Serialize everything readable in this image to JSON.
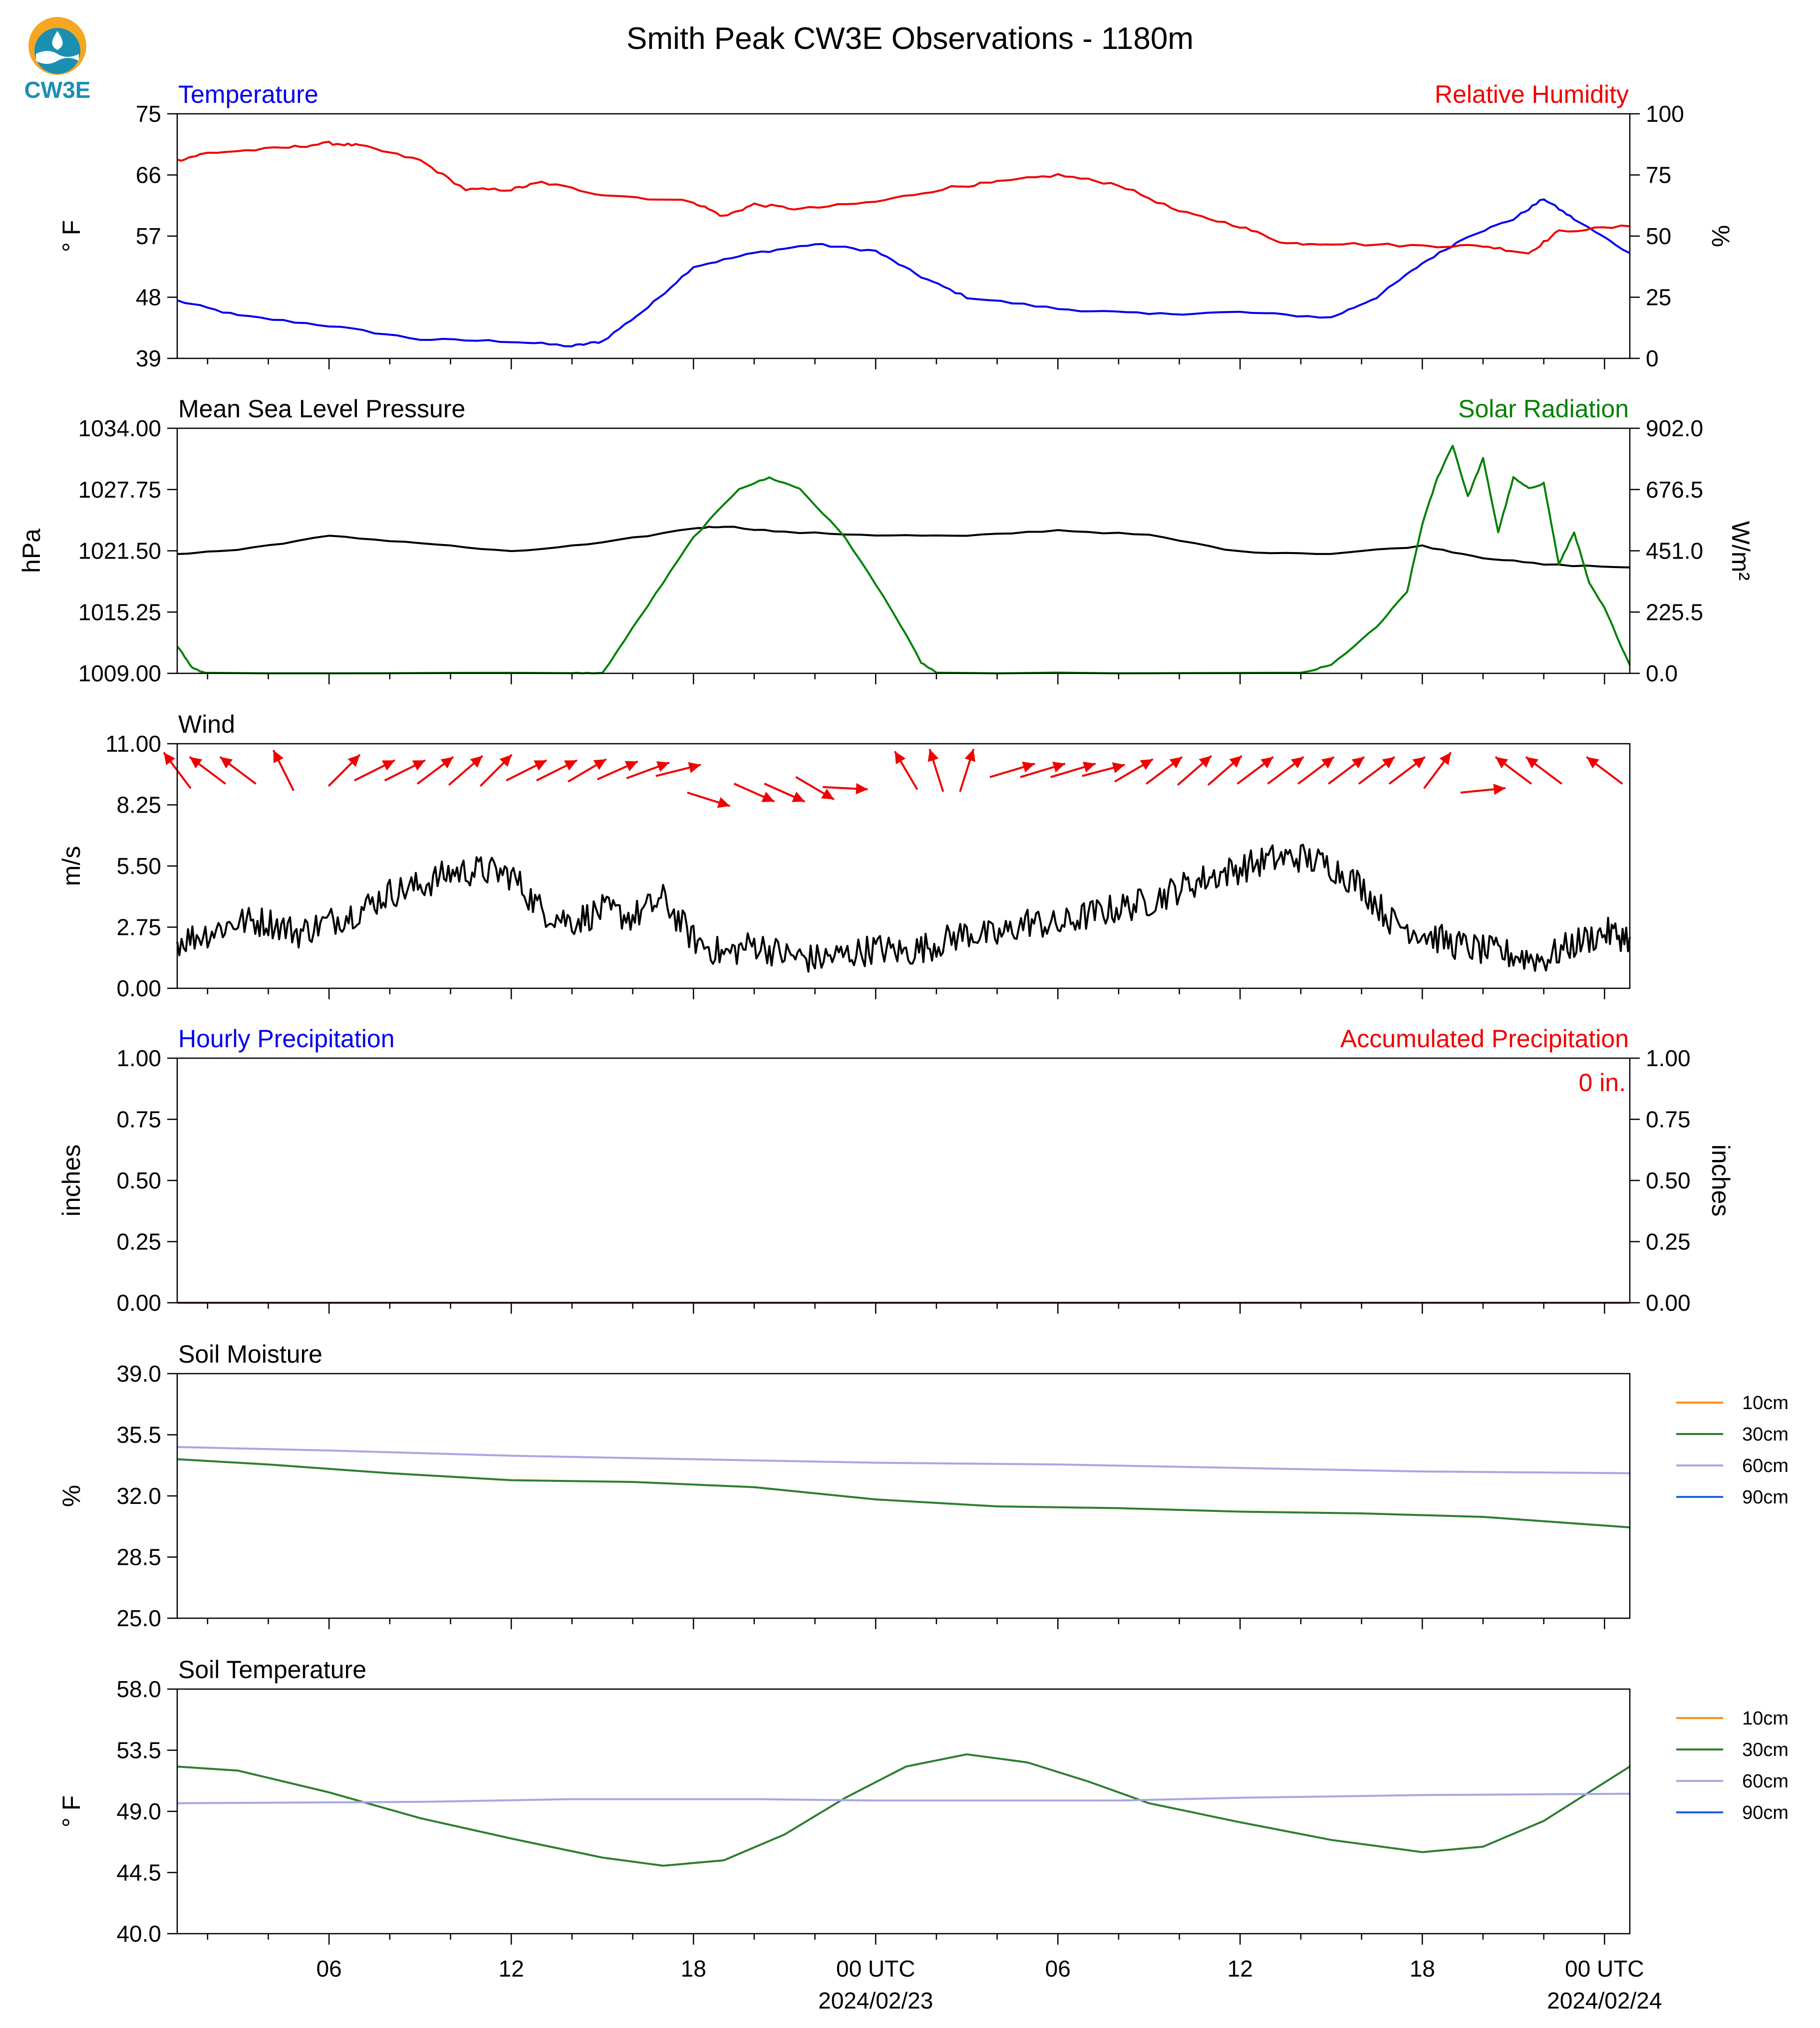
{
  "page": {
    "title": "Smith Peak CW3E Observations - 1180m",
    "logo_text": "CW3E"
  },
  "colors": {
    "blue": "#0000ee",
    "red": "#ee0000",
    "green": "#008000",
    "black": "#000000",
    "orange": "#ff8c1a",
    "lightgreen_30cm": "#2e7d32",
    "lavender_60cm": "#a7a7e3",
    "blue_90cm": "#1f5fe6",
    "logo_orange": "#f5a623",
    "logo_teal": "#1b8fb0"
  },
  "x_axis": {
    "tick_labels": [
      "06",
      "12",
      "18",
      "00 UTC",
      "06",
      "12",
      "18",
      "00 UTC"
    ],
    "date_labels": [
      "2024/02/23",
      "2024/02/24"
    ],
    "start": "2024-02-22T01:00Z",
    "end": "2024-02-24T00:50Z"
  },
  "chart_data": [
    {
      "id": "temperature-rh",
      "type": "line",
      "title_left": "Temperature",
      "title_right": "Relative Humidity",
      "ylabel_left": "° F",
      "ylabel_right": "%",
      "ylim_left": [
        39,
        75
      ],
      "ylim_right": [
        0,
        100
      ],
      "yticks_left": [
        "39",
        "48",
        "57",
        "66",
        "75"
      ],
      "yticks_right": [
        "0",
        "25",
        "50",
        "75",
        "100"
      ],
      "series": [
        {
          "name": "Temperature",
          "axis": "left",
          "color": "#0000ee",
          "x": [
            "2024-02-22 01:00",
            "2024-02-22 03:00",
            "2024-02-22 06:00",
            "2024-02-22 09:00",
            "2024-02-22 12:00",
            "2024-02-22 14:00",
            "2024-02-22 15:00",
            "2024-02-22 16:30",
            "2024-02-22 18:00",
            "2024-02-22 20:00",
            "2024-02-22 22:00",
            "2024-02-23 00:00",
            "2024-02-23 01:30",
            "2024-02-23 03:00",
            "2024-02-23 06:00",
            "2024-02-23 09:00",
            "2024-02-23 12:00",
            "2024-02-23 15:00",
            "2024-02-23 16:30",
            "2024-02-23 18:00",
            "2024-02-23 19:30",
            "2024-02-23 21:00",
            "2024-02-23 22:00",
            "2024-02-23 23:00",
            "2024-02-24 00:50"
          ],
          "values": [
            47.5,
            45.3,
            43.8,
            41.8,
            41.5,
            40.8,
            41.5,
            46.5,
            52.5,
            54.5,
            55.8,
            54.8,
            51,
            48,
            46.3,
            45.5,
            45.8,
            45,
            48,
            53,
            57,
            59.5,
            62.5,
            59.5,
            54.5
          ]
        },
        {
          "name": "Relative Humidity",
          "axis": "right",
          "color": "#ee0000",
          "x": [
            "2024-02-22 01:00",
            "2024-02-22 02:00",
            "2024-02-22 04:30",
            "2024-02-22 06:00",
            "2024-02-22 07:00",
            "2024-02-22 09:00",
            "2024-02-22 10:30",
            "2024-02-22 12:00",
            "2024-02-22 13:00",
            "2024-02-22 15:00",
            "2024-02-22 18:00",
            "2024-02-22 19:00",
            "2024-02-22 20:00",
            "2024-02-22 21:30",
            "2024-02-23 00:00",
            "2024-02-23 02:30",
            "2024-02-23 04:00",
            "2024-02-23 06:00",
            "2024-02-23 08:00",
            "2024-02-23 10:00",
            "2024-02-23 12:00",
            "2024-02-23 13:30",
            "2024-02-23 15:00",
            "2024-02-23 18:00",
            "2024-02-23 20:00",
            "2024-02-23 21:30",
            "2024-02-23 22:30",
            "2024-02-24 00:50"
          ],
          "values": [
            81,
            84,
            86,
            88,
            87,
            81,
            69,
            69,
            72,
            67,
            64,
            58,
            63,
            61,
            64,
            70,
            72,
            75,
            71,
            60,
            54,
            47,
            47,
            46,
            46,
            43,
            52,
            54
          ]
        }
      ]
    },
    {
      "id": "pressure-solar",
      "type": "line",
      "title_left": "Mean Sea Level Pressure",
      "title_right": "Solar Radiation",
      "ylabel_left": "hPa",
      "ylabel_right": "W/m²",
      "ylim_left": [
        1009,
        1034
      ],
      "ylim_right": [
        0,
        902
      ],
      "yticks_left": [
        "1009.00",
        "1015.25",
        "1021.50",
        "1027.75",
        "1034.00"
      ],
      "yticks_right": [
        "0.0",
        "225.5",
        "451.0",
        "676.5",
        "902.0"
      ],
      "series": [
        {
          "name": "Mean Sea Level Pressure",
          "axis": "left",
          "color": "#000000",
          "x": [
            "2024-02-22 01:00",
            "2024-02-22 03:00",
            "2024-02-22 06:00",
            "2024-02-22 09:00",
            "2024-02-22 12:00",
            "2024-02-22 15:00",
            "2024-02-22 18:00",
            "2024-02-22 19:00",
            "2024-02-22 21:00",
            "2024-02-23 00:00",
            "2024-02-23 03:00",
            "2024-02-23 06:00",
            "2024-02-23 09:00",
            "2024-02-23 12:00",
            "2024-02-23 15:00",
            "2024-02-23 18:00",
            "2024-02-23 20:00",
            "2024-02-23 22:00",
            "2024-02-24 00:50"
          ],
          "values": [
            1021.2,
            1021.6,
            1023.0,
            1022.3,
            1021.4,
            1022.3,
            1023.8,
            1024.0,
            1023.4,
            1023.1,
            1023.0,
            1023.6,
            1023.1,
            1021.4,
            1021.2,
            1022.0,
            1020.8,
            1020.1,
            1019.8
          ]
        },
        {
          "name": "Solar Radiation",
          "axis": "right",
          "color": "#008000",
          "x": [
            "2024-02-22 01:00",
            "2024-02-22 01:30",
            "2024-02-22 02:00",
            "2024-02-22 14:00",
            "2024-02-22 15:00",
            "2024-02-22 16:30",
            "2024-02-22 18:00",
            "2024-02-22 19:30",
            "2024-02-22 20:30",
            "2024-02-22 21:30",
            "2024-02-22 23:00",
            "2024-02-23 00:30",
            "2024-02-23 01:30",
            "2024-02-23 02:00",
            "2024-02-23 14:00",
            "2024-02-23 15:00",
            "2024-02-23 16:30",
            "2024-02-23 17:30",
            "2024-02-23 18:00",
            "2024-02-23 18:30",
            "2024-02-23 19:00",
            "2024-02-23 19:30",
            "2024-02-23 20:00",
            "2024-02-23 20:30",
            "2024-02-23 21:00",
            "2024-02-23 21:30",
            "2024-02-23 22:00",
            "2024-02-23 22:30",
            "2024-02-23 23:00",
            "2024-02-23 23:30",
            "2024-02-24 00:00",
            "2024-02-24 00:50"
          ],
          "values": [
            100,
            20,
            0,
            0,
            0,
            250,
            500,
            680,
            720,
            680,
            500,
            240,
            40,
            0,
            0,
            30,
            170,
            300,
            550,
            720,
            840,
            650,
            790,
            520,
            720,
            680,
            700,
            400,
            520,
            330,
            240,
            30
          ]
        }
      ]
    },
    {
      "id": "wind",
      "type": "line",
      "title_left": "Wind",
      "ylabel_left": "m/s",
      "ylim_left": [
        0,
        11
      ],
      "yticks_left": [
        "0.00",
        "2.75",
        "5.50",
        "8.25",
        "11.00"
      ],
      "series": [
        {
          "name": "Wind Speed",
          "axis": "left",
          "color": "#000000",
          "x": [
            "2024-02-22 01:00",
            "2024-02-22 02:00",
            "2024-02-22 03:00",
            "2024-02-22 04:00",
            "2024-02-22 05:00",
            "2024-02-22 06:00",
            "2024-02-22 07:00",
            "2024-02-22 08:00",
            "2024-02-22 09:00",
            "2024-02-22 10:00",
            "2024-02-22 11:00",
            "2024-02-22 12:00",
            "2024-02-22 13:00",
            "2024-02-22 14:00",
            "2024-02-22 15:00",
            "2024-02-22 16:00",
            "2024-02-22 17:00",
            "2024-02-22 18:00",
            "2024-02-22 19:00",
            "2024-02-22 20:00",
            "2024-02-22 21:00",
            "2024-02-22 22:00",
            "2024-02-22 23:00",
            "2024-02-23 00:00",
            "2024-02-23 01:00",
            "2024-02-23 02:00",
            "2024-02-23 03:00",
            "2024-02-23 04:00",
            "2024-02-23 05:00",
            "2024-02-23 06:00",
            "2024-02-23 07:00",
            "2024-02-23 08:00",
            "2024-02-23 09:00",
            "2024-02-23 10:00",
            "2024-02-23 11:00",
            "2024-02-23 12:00",
            "2024-02-23 13:00",
            "2024-02-23 14:00",
            "2024-02-23 15:00",
            "2024-02-23 16:00",
            "2024-02-23 17:00",
            "2024-02-23 18:00",
            "2024-02-23 19:00",
            "2024-02-23 20:00",
            "2024-02-23 21:00",
            "2024-02-23 22:00",
            "2024-02-23 23:00",
            "2024-02-24 00:00",
            "2024-02-24 00:50"
          ],
          "values": [
            2.1,
            2.5,
            3.0,
            3.0,
            2.5,
            3.0,
            3.5,
            4.3,
            4.6,
            5.2,
            5.3,
            5.1,
            3.5,
            3.0,
            3.5,
            3.2,
            4.0,
            2.2,
            1.5,
            2.0,
            1.5,
            1.3,
            1.5,
            1.8,
            1.6,
            2.0,
            2.5,
            2.3,
            3.0,
            2.8,
            3.3,
            3.6,
            3.9,
            4.5,
            5.0,
            5.4,
            5.8,
            5.9,
            5.5,
            4.6,
            3.0,
            2.5,
            2.0,
            1.7,
            1.5,
            1.3,
            2.0,
            2.5,
            2.3
          ]
        }
      ],
      "arrows": {
        "color": "#ee0000",
        "x": [
          "2024-02-22 01:00",
          "2024-02-22 02:00",
          "2024-02-22 03:00",
          "2024-02-22 04:30",
          "2024-02-22 06:30",
          "2024-02-22 07:30",
          "2024-02-22 08:30",
          "2024-02-22 09:30",
          "2024-02-22 10:30",
          "2024-02-22 11:30",
          "2024-02-22 12:30",
          "2024-02-22 13:30",
          "2024-02-22 14:30",
          "2024-02-22 15:30",
          "2024-02-22 16:30",
          "2024-02-22 17:30",
          "2024-02-22 18:30",
          "2024-02-22 20:00",
          "2024-02-22 21:00",
          "2024-02-22 22:00",
          "2024-02-22 23:00",
          "2024-02-23 01:00",
          "2024-02-23 02:00",
          "2024-02-23 03:00",
          "2024-02-23 04:30",
          "2024-02-23 05:30",
          "2024-02-23 06:30",
          "2024-02-23 07:30",
          "2024-02-23 08:30",
          "2024-02-23 09:30",
          "2024-02-23 10:30",
          "2024-02-23 11:30",
          "2024-02-23 12:30",
          "2024-02-23 13:30",
          "2024-02-23 14:30",
          "2024-02-23 15:30",
          "2024-02-23 16:30",
          "2024-02-23 17:30",
          "2024-02-23 18:30",
          "2024-02-23 20:00",
          "2024-02-23 21:00",
          "2024-02-23 22:00",
          "2024-02-24 00:00"
        ],
        "y": [
          9.8,
          9.8,
          9.8,
          9.8,
          9.8,
          9.8,
          9.8,
          9.8,
          9.8,
          9.8,
          9.8,
          9.8,
          9.8,
          9.8,
          9.8,
          9.8,
          8.5,
          8.8,
          8.8,
          9.0,
          9.0,
          9.8,
          9.8,
          9.8,
          9.8,
          9.8,
          9.8,
          9.8,
          9.8,
          9.8,
          9.8,
          9.8,
          9.8,
          9.8,
          9.8,
          9.8,
          9.8,
          9.8,
          9.8,
          8.9,
          9.8,
          9.8,
          9.8
        ],
        "u": [
          -0.6,
          -0.8,
          -0.8,
          -0.45,
          0.7,
          0.9,
          0.9,
          0.8,
          0.75,
          0.7,
          0.9,
          0.9,
          0.85,
          0.9,
          0.95,
          1.0,
          0.95,
          0.9,
          0.9,
          0.85,
          1.0,
          -0.5,
          -0.3,
          0.3,
          1.0,
          1.0,
          1.0,
          0.95,
          0.85,
          0.8,
          0.75,
          0.75,
          0.8,
          0.8,
          0.8,
          0.8,
          0.8,
          0.8,
          0.6,
          1.0,
          -0.8,
          -0.8,
          -0.8
        ],
        "v": [
          0.8,
          0.6,
          0.6,
          0.9,
          0.7,
          0.45,
          0.45,
          0.6,
          0.65,
          0.7,
          0.45,
          0.45,
          0.5,
          0.4,
          0.35,
          0.25,
          -0.3,
          -0.4,
          -0.4,
          -0.5,
          -0.05,
          0.85,
          0.95,
          0.95,
          0.3,
          0.3,
          0.3,
          0.25,
          0.5,
          0.6,
          0.65,
          0.65,
          0.6,
          0.6,
          0.6,
          0.6,
          0.6,
          0.6,
          0.8,
          0.1,
          0.6,
          0.6,
          0.6
        ]
      }
    },
    {
      "id": "precipitation",
      "type": "line",
      "title_left": "Hourly Precipitation",
      "title_right": "Accumulated Precipitation",
      "annotation": "0 in.",
      "ylabel_left": "inches",
      "ylabel_right": "inches",
      "ylim_left": [
        0,
        1
      ],
      "ylim_right": [
        0,
        1
      ],
      "yticks_left": [
        "0.00",
        "0.25",
        "0.50",
        "0.75",
        "1.00"
      ],
      "yticks_right": [
        "0.00",
        "0.25",
        "0.50",
        "0.75",
        "1.00"
      ],
      "series": [
        {
          "name": "Accumulated Precipitation",
          "axis": "right",
          "color": "#ee0000",
          "x": [
            "2024-02-22 01:00",
            "2024-02-24 00:50"
          ],
          "values": [
            0,
            0
          ]
        }
      ]
    },
    {
      "id": "soil-moisture",
      "type": "line",
      "title_left": "Soil Moisture",
      "ylabel_left": "%",
      "ylim_left": [
        25,
        39
      ],
      "yticks_left": [
        "25.0",
        "28.5",
        "32.0",
        "35.5",
        "39.0"
      ],
      "legend": [
        "10cm",
        "30cm",
        "60cm",
        "90cm"
      ],
      "legend_colors": [
        "#ff8c1a",
        "#2e7d32",
        "#a7a7e3",
        "#1f5fe6"
      ],
      "series": [
        {
          "name": "30cm",
          "axis": "left",
          "color": "#2e7d32",
          "x": [
            "2024-02-22 01:00",
            "2024-02-22 04:00",
            "2024-02-22 08:00",
            "2024-02-22 12:00",
            "2024-02-22 16:00",
            "2024-02-22 20:00",
            "2024-02-23 00:00",
            "2024-02-23 04:00",
            "2024-02-23 08:00",
            "2024-02-23 12:00",
            "2024-02-23 16:00",
            "2024-02-23 20:00",
            "2024-02-24 00:50"
          ],
          "values": [
            34.1,
            33.8,
            33.3,
            32.9,
            32.8,
            32.5,
            31.8,
            31.4,
            31.3,
            31.1,
            31.0,
            30.8,
            30.2
          ]
        },
        {
          "name": "60cm",
          "axis": "left",
          "color": "#a7a7e3",
          "x": [
            "2024-02-22 01:00",
            "2024-02-22 06:00",
            "2024-02-22 12:00",
            "2024-02-22 18:00",
            "2024-02-23 00:00",
            "2024-02-23 06:00",
            "2024-02-23 12:00",
            "2024-02-23 18:00",
            "2024-02-24 00:50"
          ],
          "values": [
            34.8,
            34.6,
            34.3,
            34.1,
            33.9,
            33.8,
            33.6,
            33.4,
            33.3
          ]
        }
      ]
    },
    {
      "id": "soil-temperature",
      "type": "line",
      "title_left": "Soil Temperature",
      "ylabel_left": "° F",
      "ylim_left": [
        40,
        58
      ],
      "yticks_left": [
        "40.0",
        "44.5",
        "49.0",
        "53.5",
        "58.0"
      ],
      "legend": [
        "10cm",
        "30cm",
        "60cm",
        "90cm"
      ],
      "legend_colors": [
        "#ff8c1a",
        "#2e7d32",
        "#a7a7e3",
        "#1f5fe6"
      ],
      "series": [
        {
          "name": "30cm",
          "axis": "left",
          "color": "#2e7d32",
          "x": [
            "2024-02-22 01:00",
            "2024-02-22 03:00",
            "2024-02-22 06:00",
            "2024-02-22 09:00",
            "2024-02-22 12:00",
            "2024-02-22 15:00",
            "2024-02-22 17:00",
            "2024-02-22 19:00",
            "2024-02-22 21:00",
            "2024-02-22 23:00",
            "2024-02-23 01:00",
            "2024-02-23 03:00",
            "2024-02-23 05:00",
            "2024-02-23 07:00",
            "2024-02-23 09:00",
            "2024-02-23 12:00",
            "2024-02-23 15:00",
            "2024-02-23 18:00",
            "2024-02-23 20:00",
            "2024-02-23 22:00",
            "2024-02-24 00:50"
          ],
          "values": [
            52.3,
            52.0,
            50.4,
            48.5,
            47.0,
            45.6,
            45.0,
            45.4,
            47.3,
            50.0,
            52.3,
            53.2,
            52.6,
            51.2,
            49.6,
            48.2,
            46.9,
            46.0,
            46.4,
            48.3,
            52.3
          ]
        },
        {
          "name": "60cm",
          "axis": "left",
          "color": "#a7a7e3",
          "x": [
            "2024-02-22 01:00",
            "2024-02-22 09:00",
            "2024-02-22 14:00",
            "2024-02-22 20:00",
            "2024-02-23 00:00",
            "2024-02-23 08:00",
            "2024-02-23 12:00",
            "2024-02-23 18:00",
            "2024-02-24 00:50"
          ],
          "values": [
            49.6,
            49.7,
            49.9,
            49.9,
            49.8,
            49.8,
            50.0,
            50.2,
            50.3
          ]
        }
      ]
    }
  ]
}
